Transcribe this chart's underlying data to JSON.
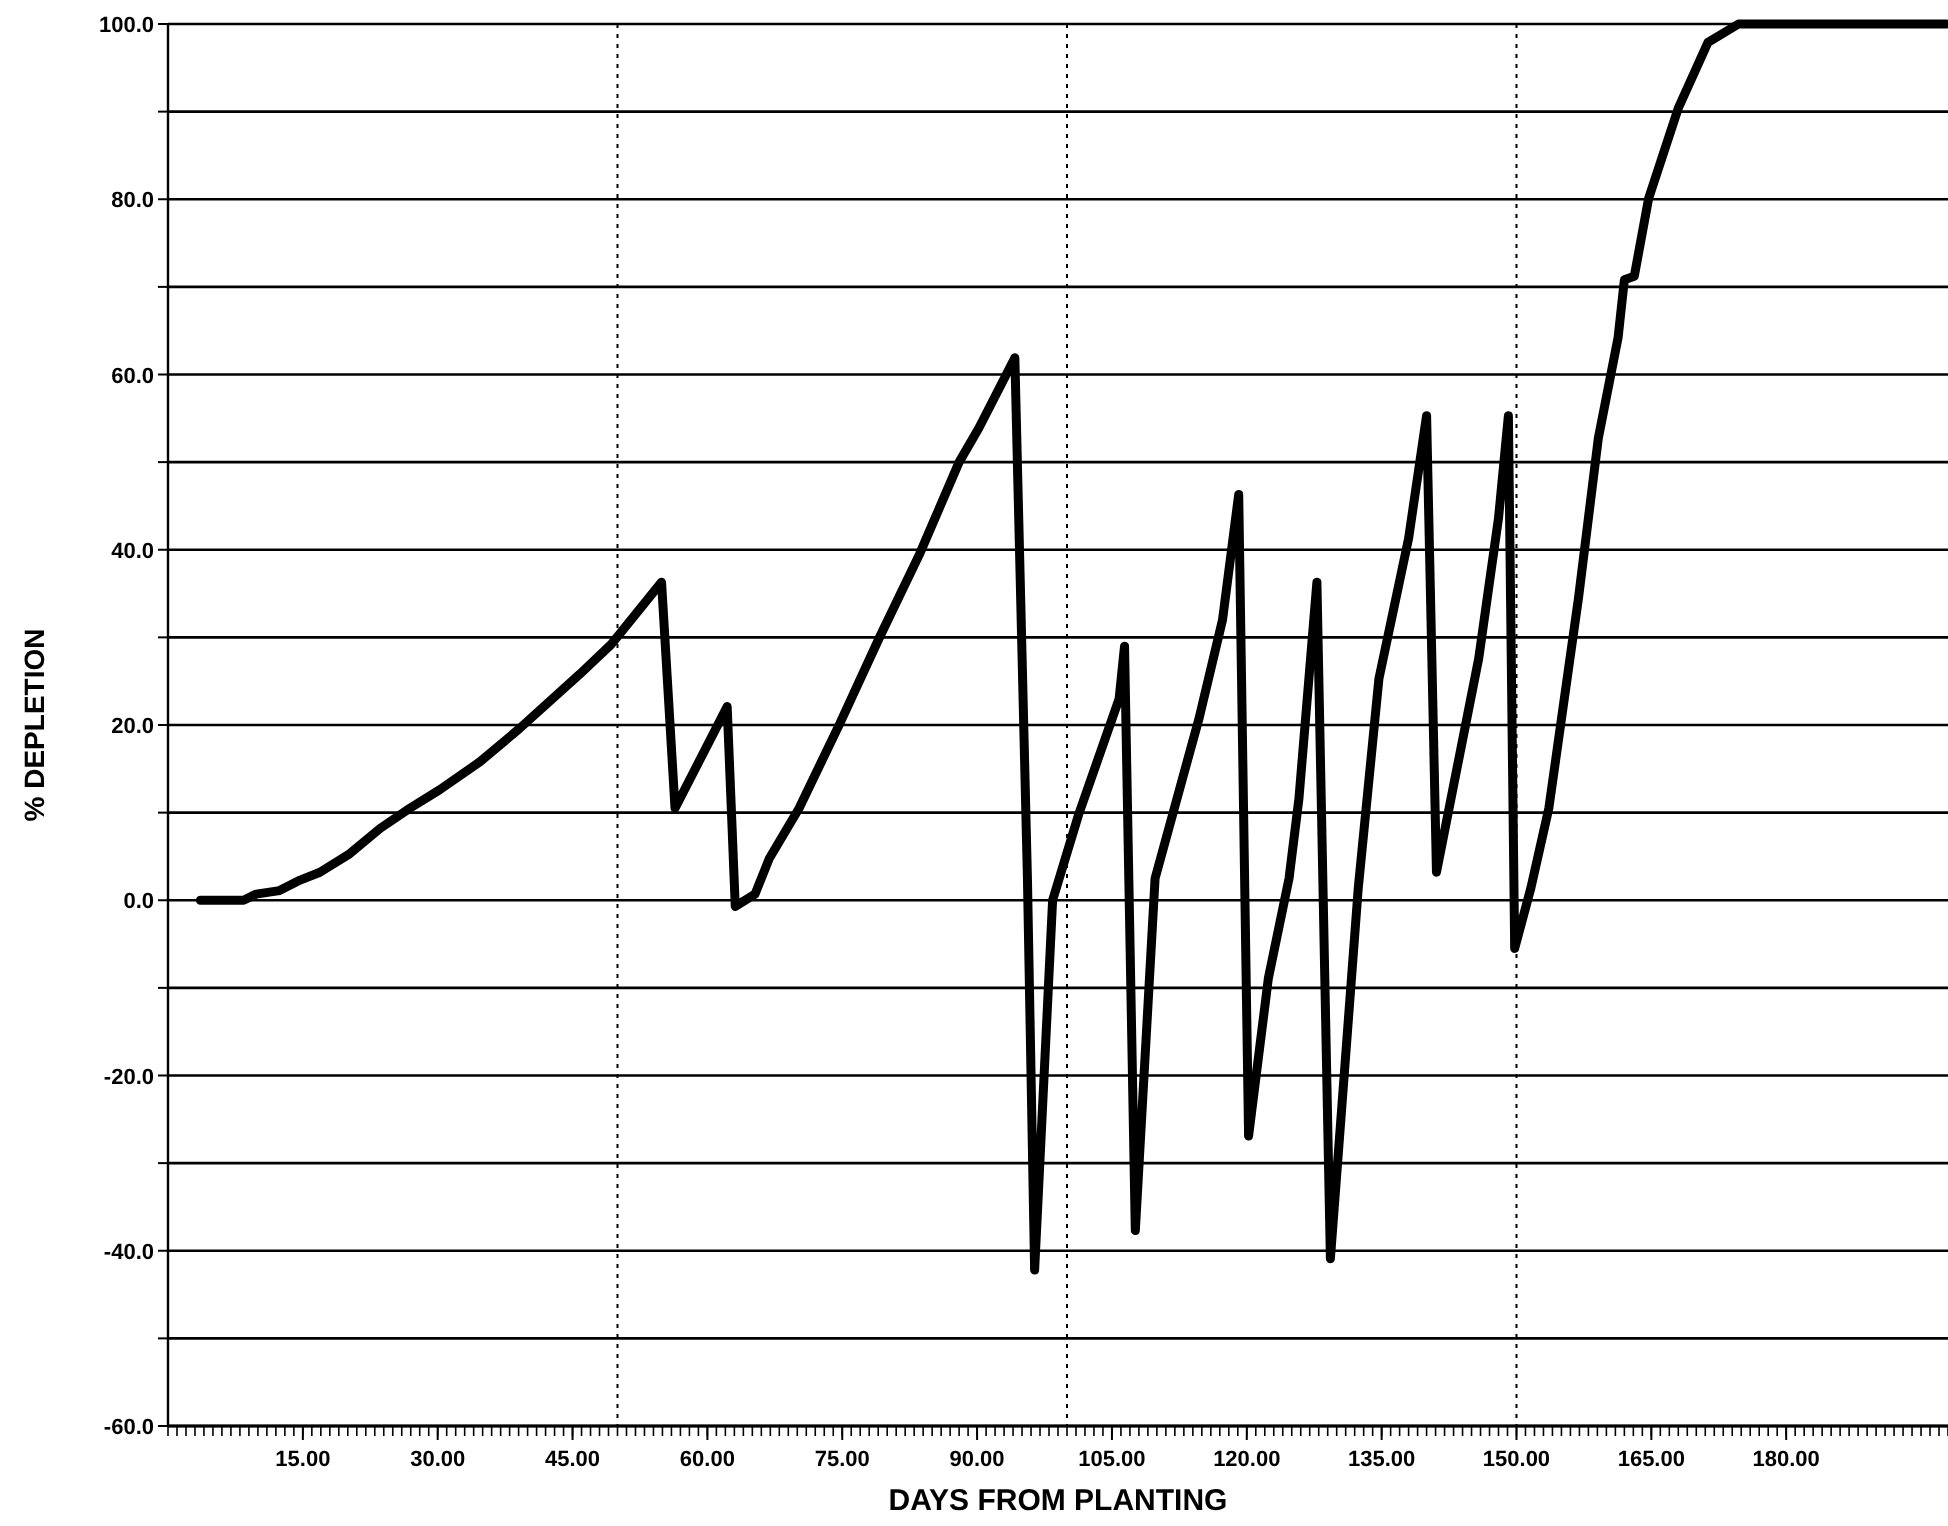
{
  "chart_data": {
    "type": "line",
    "xlabel": "DAYS FROM PLANTING",
    "ylabel": "% DEPLETION",
    "xlim": [
      0,
      198
    ],
    "xticks": [
      {
        "value": 15,
        "label": "15.00"
      },
      {
        "value": 30,
        "label": "30.00"
      },
      {
        "value": 45,
        "label": "45.00"
      },
      {
        "value": 60,
        "label": "60.00"
      },
      {
        "value": 75,
        "label": "75.00"
      },
      {
        "value": 90,
        "label": "90.00"
      },
      {
        "value": 105,
        "label": "105.00"
      },
      {
        "value": 120,
        "label": "120.00"
      },
      {
        "value": 135,
        "label": "135.00"
      },
      {
        "value": 150,
        "label": "150.00"
      },
      {
        "value": 165,
        "label": "165.00"
      },
      {
        "value": 180,
        "label": "180.00"
      }
    ],
    "ylim": [
      -60,
      100
    ],
    "yticks": [
      {
        "value": -60,
        "label": "-60.0"
      },
      {
        "value": -50,
        "label": null
      },
      {
        "value": -40,
        "label": "-40.0"
      },
      {
        "value": -30,
        "label": null
      },
      {
        "value": -20,
        "label": "-20.0"
      },
      {
        "value": -10,
        "label": null
      },
      {
        "value": 0,
        "label": "0.0"
      },
      {
        "value": 10,
        "label": null
      },
      {
        "value": 20,
        "label": "20.0"
      },
      {
        "value": 30,
        "label": null
      },
      {
        "value": 40,
        "label": "40.0"
      },
      {
        "value": 50,
        "label": null
      },
      {
        "value": 60,
        "label": "60.0"
      },
      {
        "value": 70,
        "label": null
      },
      {
        "value": 80,
        "label": "80.0"
      },
      {
        "value": 90,
        "label": null
      },
      {
        "value": 100,
        "label": "100.0"
      }
    ],
    "grid": "y",
    "ref_lines": [
      {
        "axis": "x",
        "value": 50,
        "line_style": "dotted",
        "color": "#000000"
      },
      {
        "axis": "x",
        "value": 100,
        "line_style": "dotted",
        "color": "#000000"
      },
      {
        "axis": "x",
        "value": 150,
        "line_style": "dotted",
        "color": "#000000"
      }
    ],
    "line_style": "solid",
    "marker": "none",
    "series": [
      {
        "color": "#000000",
        "x": [
          3.6,
          8.4,
          9.8,
          12.4,
          14.7,
          16.9,
          20.2,
          23.6,
          26.9,
          30.2,
          34.7,
          39.1,
          45.8,
          49.3,
          54.9,
          56.4,
          62.2,
          63.1,
          65.3,
          66.9,
          70.2,
          74.7,
          79.1,
          83.6,
          88.0,
          90.2,
          94.2,
          95.6,
          96.4,
          98.4,
          101.3,
          105.8,
          106.4,
          107.6,
          109.8,
          114.7,
          117.3,
          119.1,
          120.2,
          122.4,
          124.7,
          125.8,
          127.8,
          129.3,
          132.4,
          134.7,
          138.0,
          140.0,
          141.1,
          143.6,
          145.8,
          148.0,
          149.1,
          149.8,
          151.6,
          153.6,
          156.9,
          159.1,
          161.3,
          162.0,
          163.1,
          164.7,
          168.0,
          171.3,
          174.7,
          197.8
        ],
        "values": [
          0,
          0,
          0.7,
          1.1,
          2.3,
          3.2,
          5.3,
          8.2,
          10.5,
          12.6,
          15.8,
          19.6,
          25.8,
          29.2,
          36.3,
          10.5,
          22.1,
          -0.7,
          0.7,
          4.8,
          10.5,
          20.1,
          29.9,
          39.5,
          50,
          53.9,
          61.9,
          2.5,
          -42.2,
          0,
          9.8,
          23,
          29,
          -37.7,
          2.5,
          20.8,
          32,
          46.3,
          -26.9,
          -8.9,
          2.5,
          11.6,
          36.3,
          -40.9,
          1.4,
          25.3,
          41.3,
          55.3,
          3.2,
          16.2,
          27.6,
          43.6,
          55.3,
          -5.5,
          1.4,
          10.5,
          34.5,
          52.7,
          64.2,
          70.8,
          71.2,
          80.1,
          90.4,
          97.9,
          100,
          100
        ]
      }
    ]
  }
}
